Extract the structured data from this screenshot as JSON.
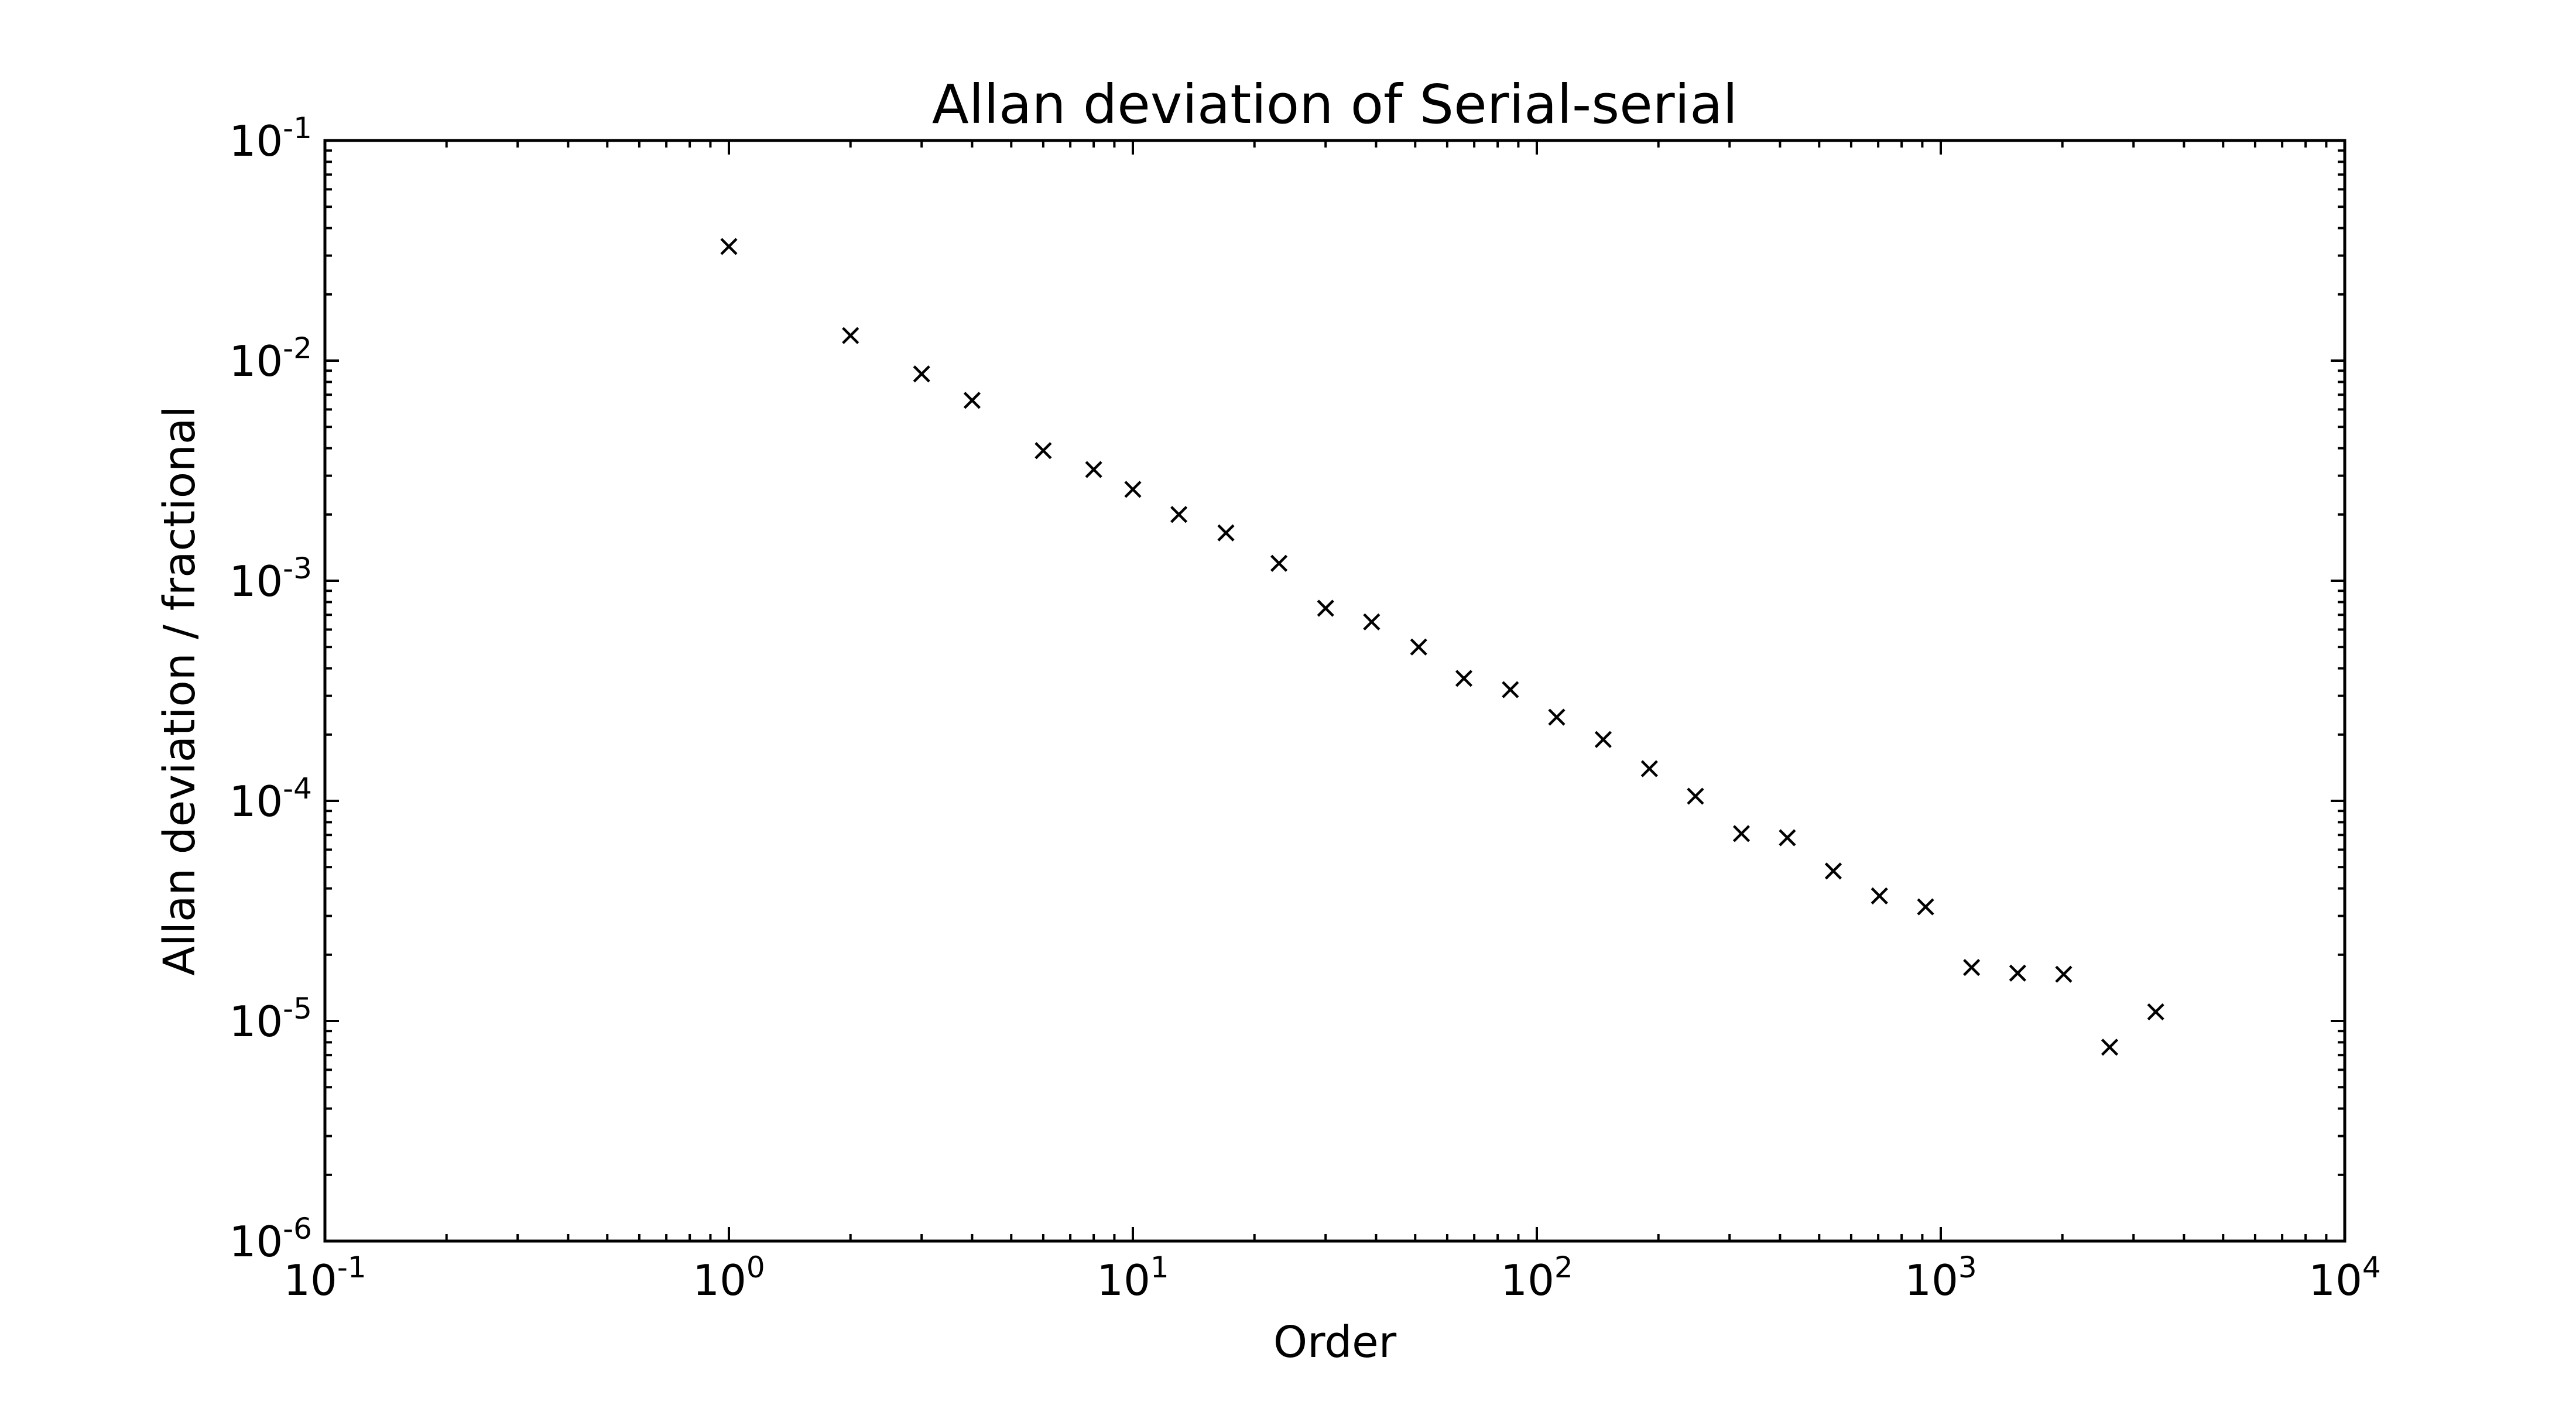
{
  "chart_data": {
    "type": "scatter",
    "title": "Allan deviation of Serial-serial",
    "xlabel": "Order",
    "ylabel": "Allan deviation / fractional",
    "xscale": "log",
    "yscale": "log",
    "xlim": [
      0.1,
      10000
    ],
    "ylim": [
      1e-06,
      0.1
    ],
    "grid": false,
    "marker": "x",
    "marker_color": "#000000",
    "x_ticks": [
      {
        "base": "10",
        "exp": "-1",
        "value": 0.1
      },
      {
        "base": "10",
        "exp": "0",
        "value": 1
      },
      {
        "base": "10",
        "exp": "1",
        "value": 10
      },
      {
        "base": "10",
        "exp": "2",
        "value": 100
      },
      {
        "base": "10",
        "exp": "3",
        "value": 1000
      },
      {
        "base": "10",
        "exp": "4",
        "value": 10000
      }
    ],
    "y_ticks": [
      {
        "base": "10",
        "exp": "-6",
        "value": 1e-06
      },
      {
        "base": "10",
        "exp": "-5",
        "value": 1e-05
      },
      {
        "base": "10",
        "exp": "-4",
        "value": 0.0001
      },
      {
        "base": "10",
        "exp": "-3",
        "value": 0.001
      },
      {
        "base": "10",
        "exp": "-2",
        "value": 0.01
      },
      {
        "base": "10",
        "exp": "-1",
        "value": 0.1
      }
    ],
    "points": [
      {
        "x": 1,
        "y": 0.033
      },
      {
        "x": 2,
        "y": 0.013
      },
      {
        "x": 3,
        "y": 0.0087
      },
      {
        "x": 4,
        "y": 0.0066
      },
      {
        "x": 6,
        "y": 0.0039
      },
      {
        "x": 8,
        "y": 0.0032
      },
      {
        "x": 10,
        "y": 0.0026
      },
      {
        "x": 13,
        "y": 0.002
      },
      {
        "x": 17,
        "y": 0.00165
      },
      {
        "x": 23,
        "y": 0.0012
      },
      {
        "x": 30,
        "y": 0.00075
      },
      {
        "x": 39,
        "y": 0.00065
      },
      {
        "x": 51,
        "y": 0.0005
      },
      {
        "x": 66,
        "y": 0.00036
      },
      {
        "x": 86,
        "y": 0.00032
      },
      {
        "x": 112,
        "y": 0.00024
      },
      {
        "x": 146,
        "y": 0.00019
      },
      {
        "x": 190,
        "y": 0.00014
      },
      {
        "x": 247,
        "y": 0.000105
      },
      {
        "x": 321,
        "y": 7.1e-05
      },
      {
        "x": 417,
        "y": 6.8e-05
      },
      {
        "x": 542,
        "y": 4.8e-05
      },
      {
        "x": 705,
        "y": 3.7e-05
      },
      {
        "x": 917,
        "y": 3.3e-05
      },
      {
        "x": 1192,
        "y": 1.75e-05
      },
      {
        "x": 1550,
        "y": 1.65e-05
      },
      {
        "x": 2015,
        "y": 1.63e-05
      },
      {
        "x": 2619,
        "y": 7.6e-06
      },
      {
        "x": 3405,
        "y": 1.1e-05
      }
    ]
  }
}
